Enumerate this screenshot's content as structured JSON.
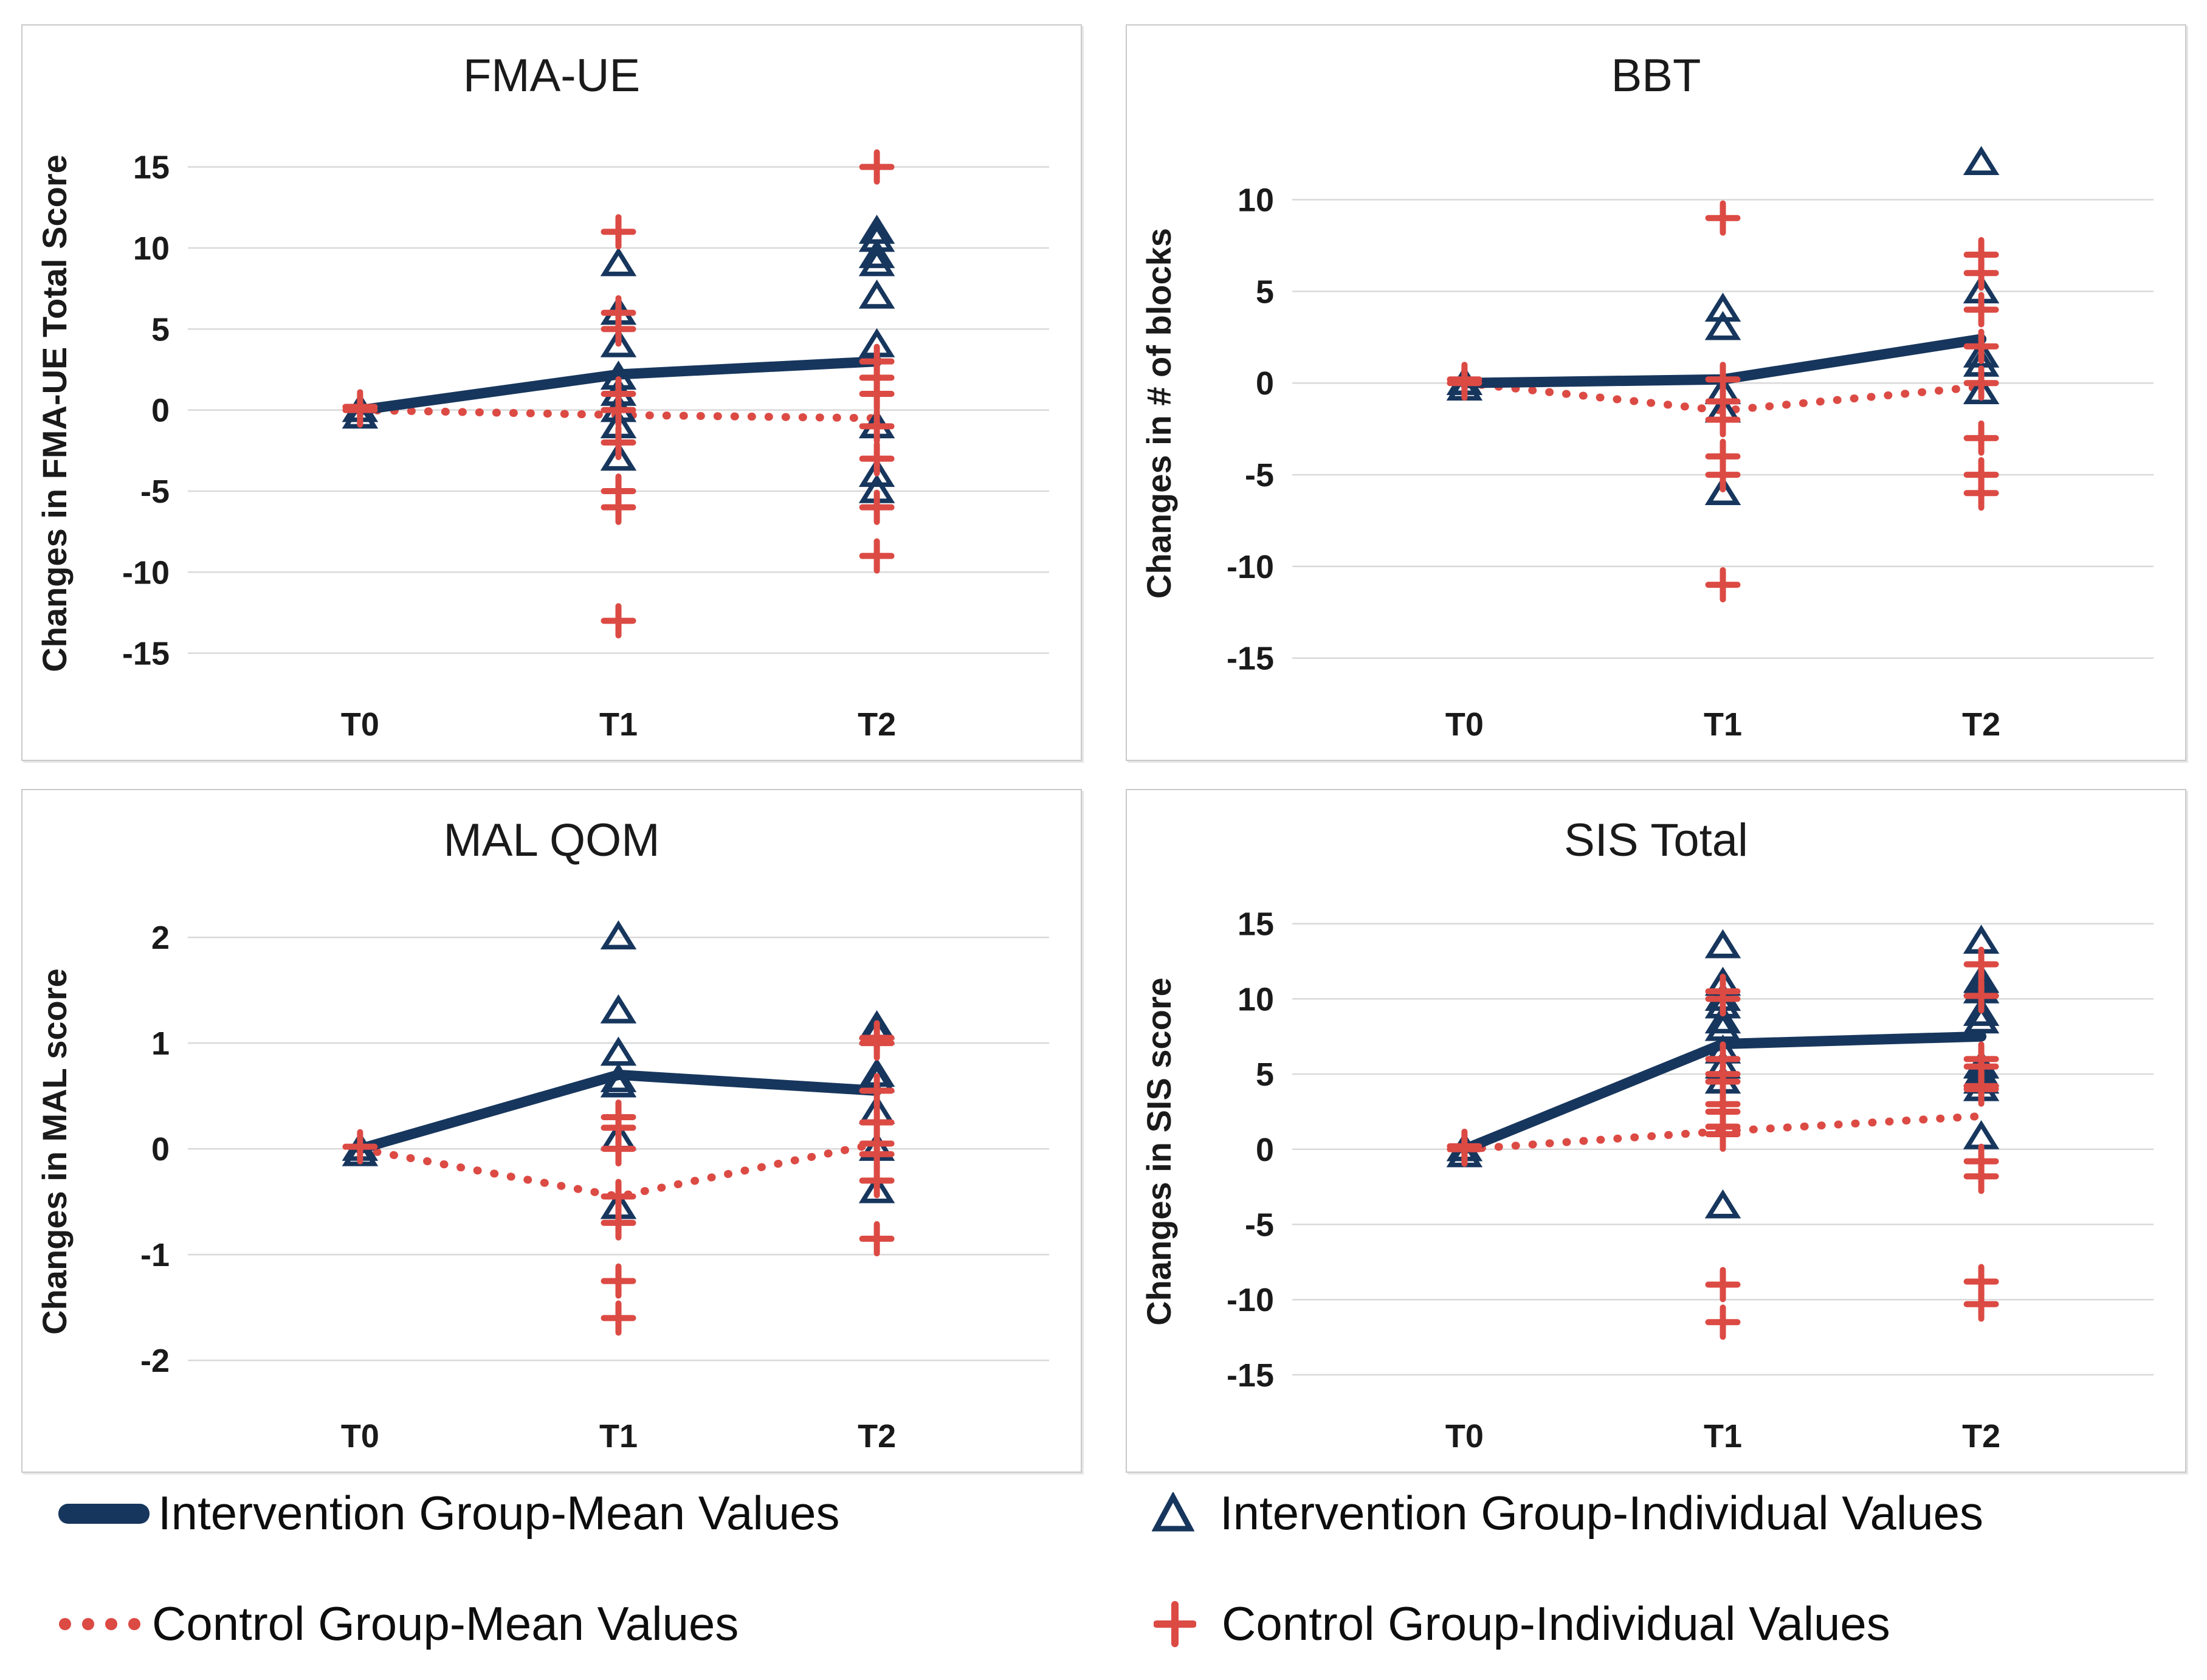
{
  "colors": {
    "navy": "#17365d",
    "red": "#dc4a44",
    "grid": "#d9d9d9",
    "tick_text": "#1a1a1a",
    "title_text": "#1a1a1a",
    "legend_text": "#0d0d0d"
  },
  "legend": {
    "items": [
      {
        "label": "Intervention Group-Mean Values",
        "swatch": "navy-solid-line"
      },
      {
        "label": "Control Group-Mean Values",
        "swatch": "red-dotted-line"
      },
      {
        "label": "Intervention Group-Individual Values",
        "swatch": "navy-open-triangle"
      },
      {
        "label": "Control Group-Individual Values",
        "swatch": "red-plus"
      }
    ]
  },
  "chart_data": [
    {
      "type": "scatter",
      "title": "FMA-UE",
      "ylabel": "Changes in FMA-UE Total Score",
      "x_categories": [
        "T0",
        "T1",
        "T2"
      ],
      "yticks": [
        15,
        10,
        5,
        0,
        -5,
        -10,
        -15
      ],
      "ylim": [
        -17.0,
        16.6
      ],
      "grid": true,
      "series": [
        {
          "name": "Control Group-Mean Values",
          "type": "line",
          "style": "dotted",
          "color_key": "red",
          "values": [
            0,
            -0.3,
            -0.5
          ]
        },
        {
          "name": "Intervention Group-Mean Values",
          "type": "line",
          "style": "solid",
          "color_key": "navy",
          "values": [
            0,
            2.2,
            3.0
          ]
        },
        {
          "name": "Intervention Group-Individual Values",
          "type": "scatter",
          "marker": "triangle",
          "color_key": "navy",
          "points": {
            "T0": [
              0,
              -0.4
            ],
            "T1": [
              9,
              6,
              4,
              2,
              1,
              0,
              -1,
              -3
            ],
            "T2": [
              11,
              10.5,
              9.5,
              9,
              7,
              4,
              -1,
              -4,
              -5
            ]
          }
        },
        {
          "name": "Control Group-Individual Values",
          "type": "scatter",
          "marker": "plus",
          "color_key": "red",
          "points": {
            "T0": [
              0.2,
              0
            ],
            "T1": [
              11,
              6,
              5,
              1,
              0,
              -2,
              -5,
              -6,
              -13
            ],
            "T2": [
              15,
              3,
              2,
              1,
              -1,
              -3,
              -6,
              -9
            ]
          }
        }
      ]
    },
    {
      "type": "scatter",
      "title": "BBT",
      "ylabel": "Changes in # of blocks",
      "x_categories": [
        "T0",
        "T1",
        "T2"
      ],
      "yticks": [
        10,
        5,
        0,
        -5,
        -10,
        -15
      ],
      "ylim": [
        -16.5,
        13.2
      ],
      "grid": true,
      "series": [
        {
          "name": "Control Group-Mean Values",
          "type": "line",
          "style": "dotted",
          "color_key": "red",
          "values": [
            0,
            -1.5,
            -0.2
          ]
        },
        {
          "name": "Intervention Group-Mean Values",
          "type": "line",
          "style": "solid",
          "color_key": "navy",
          "values": [
            0,
            0.2,
            2.4
          ]
        },
        {
          "name": "Intervention Group-Individual Values",
          "type": "scatter",
          "marker": "triangle",
          "color_key": "navy",
          "points": {
            "T0": [
              0,
              -0.3
            ],
            "T1": [
              4,
              3,
              -0.5,
              -1.5,
              -6
            ],
            "T2": [
              12,
              5,
              1.5,
              1,
              -0.5
            ]
          }
        },
        {
          "name": "Control Group-Individual Values",
          "type": "scatter",
          "marker": "plus",
          "color_key": "red",
          "points": {
            "T0": [
              0.2,
              0
            ],
            "T1": [
              9,
              0.2,
              -1,
              -2,
              -4,
              -5,
              -11
            ],
            "T2": [
              7,
              6,
              4,
              2,
              0,
              -3,
              -5,
              -6
            ]
          }
        }
      ]
    },
    {
      "type": "scatter",
      "title": "MAL QOM",
      "ylabel": "Changes in MAL score",
      "x_categories": [
        "T0",
        "T1",
        "T2"
      ],
      "yticks": [
        2,
        1,
        0,
        -1,
        -2
      ],
      "ylim": [
        -2.35,
        2.3
      ],
      "grid": true,
      "series": [
        {
          "name": "Control Group-Mean Values",
          "type": "line",
          "style": "dotted",
          "color_key": "red",
          "values": [
            0,
            -0.45,
            0.05
          ]
        },
        {
          "name": "Intervention Group-Mean Values",
          "type": "line",
          "style": "solid",
          "color_key": "navy",
          "values": [
            0,
            0.7,
            0.55
          ]
        },
        {
          "name": "Intervention Group-Individual Values",
          "type": "scatter",
          "marker": "triangle",
          "color_key": "navy",
          "points": {
            "T0": [
              0,
              -0.05
            ],
            "T1": [
              2.0,
              1.3,
              0.9,
              0.65,
              0.6,
              0.1,
              -0.55
            ],
            "T2": [
              1.15,
              1.1,
              0.7,
              0.65,
              0.35,
              0,
              -0.4
            ]
          }
        },
        {
          "name": "Control Group-Individual Values",
          "type": "scatter",
          "marker": "plus",
          "color_key": "red",
          "points": {
            "T0": [
              0.02
            ],
            "T1": [
              0.3,
              0.2,
              0,
              -0.45,
              -0.7,
              -1.25,
              -1.6
            ],
            "T2": [
              1.05,
              1.0,
              0.55,
              0.25,
              0.05,
              -0.05,
              -0.3,
              -0.85
            ]
          }
        }
      ]
    },
    {
      "type": "scatter",
      "title": "SIS Total",
      "ylabel": "Changes in SIS score",
      "x_categories": [
        "T0",
        "T1",
        "T2"
      ],
      "yticks": [
        15,
        10,
        5,
        0,
        -5,
        -10,
        -15
      ],
      "ylim": [
        -16.5,
        16.2
      ],
      "grid": true,
      "series": [
        {
          "name": "Control Group-Mean Values",
          "type": "line",
          "style": "dotted",
          "color_key": "red",
          "values": [
            0,
            1.2,
            2.2
          ]
        },
        {
          "name": "Intervention Group-Mean Values",
          "type": "line",
          "style": "solid",
          "color_key": "navy",
          "values": [
            0,
            7.0,
            7.5
          ]
        },
        {
          "name": "Intervention Group-Individual Values",
          "type": "scatter",
          "marker": "triangle",
          "color_key": "navy",
          "points": {
            "T0": [
              0,
              -0.4
            ],
            "T1": [
              13.5,
              11,
              10,
              9.5,
              8.5,
              8,
              6.5,
              5.5,
              4.5,
              -3.8
            ],
            "T2": [
              13.8,
              11.2,
              11,
              10.5,
              9,
              8.5,
              5.5,
              5,
              4.5,
              4,
              0.8
            ]
          }
        },
        {
          "name": "Control Group-Individual Values",
          "type": "scatter",
          "marker": "plus",
          "color_key": "red",
          "points": {
            "T0": [
              0.2,
              0
            ],
            "T1": [
              10.5,
              10,
              6,
              5,
              4.5,
              3,
              2.5,
              1.5,
              1,
              -9,
              -11.5
            ],
            "T2": [
              12.3,
              10.2,
              6,
              5.5,
              4.2,
              4,
              -0.8,
              -1.8,
              -8.8,
              -10.3
            ]
          }
        }
      ]
    }
  ]
}
